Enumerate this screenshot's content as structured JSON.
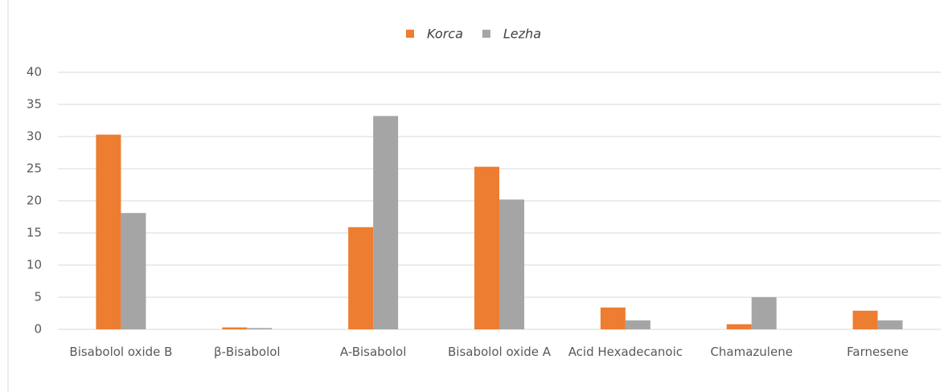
{
  "chart_data": {
    "type": "bar",
    "categories": [
      "Bisabolol oxide B",
      "β-Bisabolol",
      "A-Bisabolol",
      "Bisabolol oxide A",
      "Acid Hexadecanoic",
      "Chamazulene",
      "Farnesene"
    ],
    "series": [
      {
        "name": "Korca",
        "color": "#ed7d31",
        "values": [
          30.3,
          0.3,
          15.9,
          25.3,
          3.4,
          0.8,
          2.9
        ]
      },
      {
        "name": "Lezha",
        "color": "#a5a5a5",
        "values": [
          18.1,
          0.2,
          33.2,
          20.2,
          1.4,
          5.0,
          1.4
        ]
      }
    ],
    "ylim": [
      0,
      40
    ],
    "yticks": [
      0,
      5,
      10,
      15,
      20,
      25,
      30,
      35,
      40
    ],
    "grid": true,
    "legend": "top"
  }
}
